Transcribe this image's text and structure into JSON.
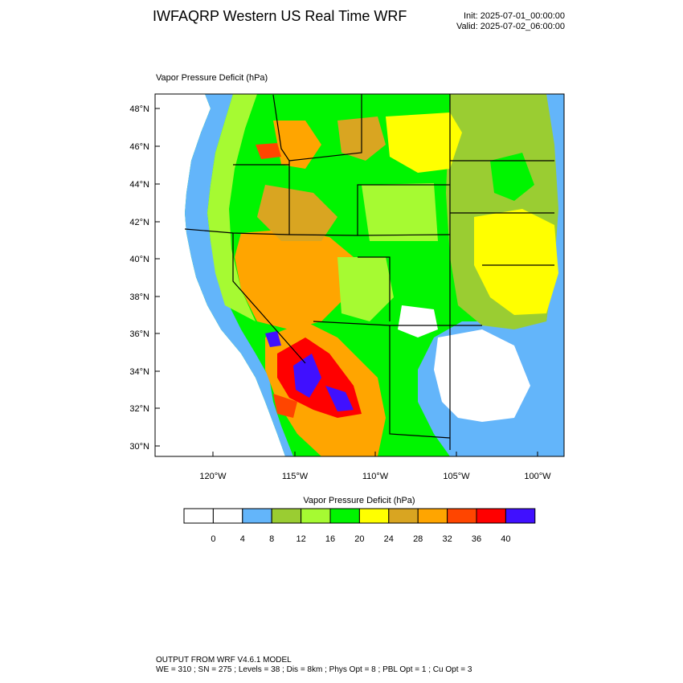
{
  "header": {
    "title": "IWFAQRP Western US Real Time WRF",
    "init": "Init: 2025-07-01_00:00:00",
    "valid": "Valid: 2025-07-02_06:00:00"
  },
  "map": {
    "variable_label": "Vapor Pressure Deficit   (hPa)",
    "lat_labels": [
      "48°N",
      "46°N",
      "44°N",
      "42°N",
      "40°N",
      "38°N",
      "36°N",
      "34°N",
      "32°N",
      "30°N"
    ],
    "lon_labels": [
      "120°W",
      "115°W",
      "110°W",
      "105°W",
      "100°W"
    ]
  },
  "colorbar": {
    "title": "Vapor Pressure Deficit  (hPa)",
    "tick_labels": [
      "0",
      "4",
      "8",
      "12",
      "16",
      "20",
      "24",
      "28",
      "32",
      "36",
      "40"
    ],
    "colors": [
      "#ffffff",
      "#ffffff",
      "#63b5fa",
      "#9acd32",
      "#a6fa32",
      "#00f500",
      "#ffff00",
      "#d9a521",
      "#ffa500",
      "#ff4500",
      "#ff0000",
      "#4010ff"
    ]
  },
  "footer": {
    "line1": "OUTPUT FROM WRF V4.6.1 MODEL",
    "line2": "WE = 310 ; SN = 275 ; Levels = 38 ; Dis = 8km ; Phys Opt = 8 ; PBL Opt = 1 ; Cu Opt = 3"
  }
}
